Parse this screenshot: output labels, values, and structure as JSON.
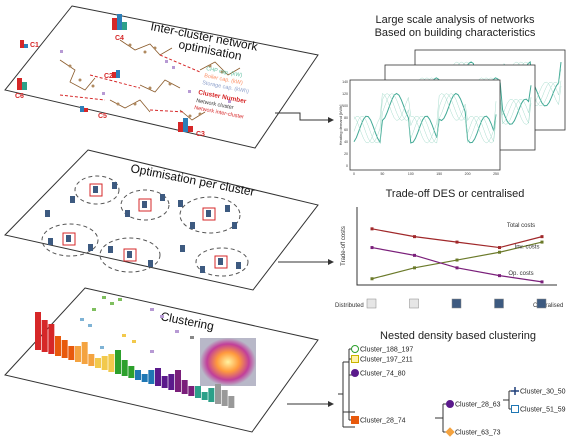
{
  "layers": {
    "top": {
      "title": "Inter-cluster network optimisation",
      "title_line1": "Inter-cluster network",
      "title_line2": "optimisation",
      "cluster_labels": [
        "C1",
        "C2",
        "C3",
        "C4",
        "C5",
        "C6"
      ],
      "legend": [
        {
          "text": "CHP cap. (kW)",
          "color": "#66c2a5"
        },
        {
          "text": "Boiler cap. (kW)",
          "color": "#fc8d62"
        },
        {
          "text": "Storage cap. (kWh)",
          "color": "#8da0cb"
        },
        {
          "text": "Cluster Number",
          "color": "#d62728"
        },
        {
          "text": "Network cluster",
          "color": "#333333"
        },
        {
          "text": "Network inter-cluster",
          "color": "#d62728"
        }
      ]
    },
    "middle": {
      "title": "Optimisation per cluster"
    },
    "bottom": {
      "title": "Clustering"
    }
  },
  "panels": {
    "networks": {
      "title_line1": "Large scale analysis of networks",
      "title_line2": "Based on building characteristics",
      "ylabel": "Heating demand [kWh]",
      "xlabel": "Typical days [h]",
      "xticks": [
        "0",
        "50",
        "100",
        "150",
        "200",
        "250"
      ],
      "yticks": [
        "0",
        "20",
        "40",
        "60",
        "80",
        "100",
        "120",
        "140"
      ]
    },
    "tradeoff": {
      "title": "Trade-off DES or centralised",
      "ylabel": "Trade-off costs",
      "x_left": "Distributed",
      "x_right": "Centralised",
      "series": [
        {
          "name": "Total costs",
          "color": "#a0282a"
        },
        {
          "name": "Inv. costs",
          "color": "#6b7a2a"
        },
        {
          "name": "Op. costs",
          "color": "#7a1f7a"
        }
      ]
    },
    "dendro": {
      "title": "Nested density based clustering",
      "clusters": [
        {
          "name": "Cluster_188_197",
          "color": "#ffffff",
          "stroke": "#2ca02c",
          "shape": "circle"
        },
        {
          "name": "Cluster_197_211",
          "color": "#fff2a8",
          "stroke": "#c8b400",
          "shape": "square"
        },
        {
          "name": "Cluster_74_80",
          "color": "#5b1a8c",
          "stroke": "#5b1a8c",
          "shape": "circle"
        },
        {
          "name": "Cluster_28_74",
          "color": "#e8590c",
          "stroke": "#e8590c",
          "shape": "square"
        },
        {
          "name": "Cluster_28_63",
          "color": "#5b1a8c",
          "stroke": "#5b1a8c",
          "shape": "circle"
        },
        {
          "name": "Cluster_63_73",
          "color": "#f4a340",
          "stroke": "#f4a340",
          "shape": "diamond"
        },
        {
          "name": "Cluster_30_50",
          "color": "#1f3f7a",
          "stroke": "#1f3f7a",
          "shape": "plus"
        },
        {
          "name": "Cluster_51_59",
          "color": "#ffffff",
          "stroke": "#1f77b4",
          "shape": "square"
        }
      ]
    }
  },
  "colors": {
    "accent_red": "#d62728",
    "line": "#333333",
    "teal": "#2ca089"
  },
  "chart_data": [
    {
      "type": "line",
      "title": "Trade-off DES or centralised",
      "ylabel": "Trade-off costs",
      "categories": [
        "Distributed",
        "",
        "",
        "",
        "Centralised"
      ],
      "series": [
        {
          "name": "Total costs",
          "values": [
            0.72,
            0.62,
            0.55,
            0.48,
            0.62
          ]
        },
        {
          "name": "Inv. costs",
          "values": [
            0.08,
            0.22,
            0.32,
            0.42,
            0.55
          ]
        },
        {
          "name": "Op. costs",
          "values": [
            0.48,
            0.38,
            0.22,
            0.12,
            0.04
          ]
        }
      ]
    }
  ]
}
